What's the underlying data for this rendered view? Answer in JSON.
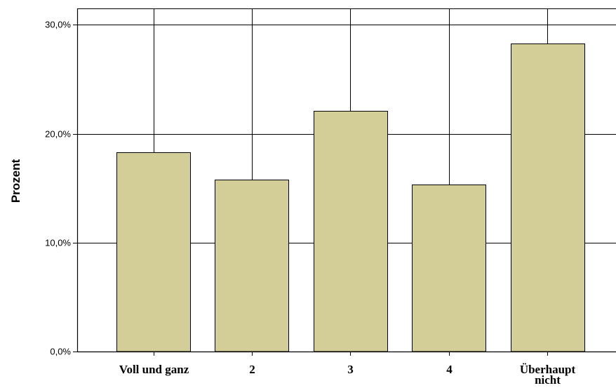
{
  "chart_data": {
    "type": "bar",
    "ylabel": "Prozent",
    "xlabel": "",
    "categories": [
      [
        "Voll und ganz"
      ],
      [
        "2"
      ],
      [
        "3"
      ],
      [
        "4"
      ],
      [
        "Überhaupt",
        "nicht"
      ]
    ],
    "values": [
      18.3,
      15.8,
      22.1,
      15.3,
      28.3
    ],
    "ylim": [
      0,
      31.5
    ],
    "yticks": [
      0,
      10,
      20,
      30
    ],
    "ytick_labels": [
      "0,0%",
      "10,0%",
      "20,0%",
      "30,0%"
    ],
    "grid": true,
    "bar_color": "#d3ce98",
    "bar_edge_color": "#000000"
  }
}
